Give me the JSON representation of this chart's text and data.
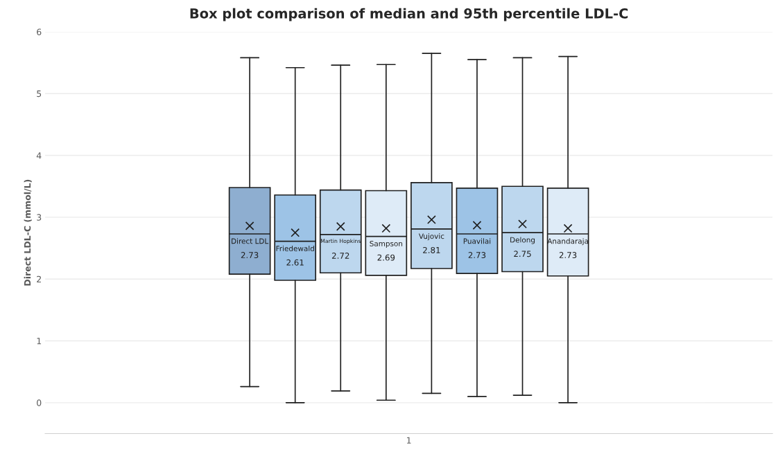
{
  "chart_data": {
    "type": "box",
    "title": "Box plot comparison of median and 95th percentile LDL-C",
    "ylabel": "Direct LDL-C (mmol/L)",
    "categories": [
      "1"
    ],
    "ylim": [
      -0.5,
      6
    ],
    "yticks": [
      0,
      1,
      2,
      3,
      4,
      5,
      6
    ],
    "grid": "y",
    "legend": false,
    "series": [
      {
        "name": "Direct LDL",
        "color": "#8eaed0",
        "boxes": [
          {
            "low": 0.26,
            "q1": 2.08,
            "median": 2.73,
            "q3": 3.48,
            "high": 5.58,
            "mean": 2.86
          }
        ],
        "value_labels": [
          "2.73"
        ]
      },
      {
        "name": "Friedewald",
        "color": "#9dc3e6",
        "boxes": [
          {
            "low": 0.0,
            "q1": 1.98,
            "median": 2.61,
            "q3": 3.36,
            "high": 5.42,
            "mean": 2.75
          }
        ],
        "value_labels": [
          "2.61"
        ]
      },
      {
        "name": "Martin Hopkins",
        "color": "#bdd7ee",
        "boxes": [
          {
            "low": 0.19,
            "q1": 2.1,
            "median": 2.72,
            "q3": 3.44,
            "high": 5.46,
            "mean": 2.85
          }
        ],
        "value_labels": [
          "2.72"
        ]
      },
      {
        "name": "Sampson",
        "color": "#deebf7",
        "boxes": [
          {
            "low": 0.04,
            "q1": 2.06,
            "median": 2.69,
            "q3": 3.43,
            "high": 5.47,
            "mean": 2.82
          }
        ],
        "value_labels": [
          "2.69"
        ]
      },
      {
        "name": "Vujovic",
        "color": "#bdd7ee",
        "boxes": [
          {
            "low": 0.15,
            "q1": 2.17,
            "median": 2.81,
            "q3": 3.56,
            "high": 5.65,
            "mean": 2.96
          }
        ],
        "value_labels": [
          "2.81"
        ]
      },
      {
        "name": "Puavilai",
        "color": "#9dc3e6",
        "boxes": [
          {
            "low": 0.1,
            "q1": 2.09,
            "median": 2.73,
            "q3": 3.47,
            "high": 5.55,
            "mean": 2.87
          }
        ],
        "value_labels": [
          "2.73"
        ]
      },
      {
        "name": "Delong",
        "color": "#bdd7ee",
        "boxes": [
          {
            "low": 0.12,
            "q1": 2.12,
            "median": 2.75,
            "q3": 3.5,
            "high": 5.58,
            "mean": 2.89
          }
        ],
        "value_labels": [
          "2.75"
        ]
      },
      {
        "name": "Anandaraja",
        "color": "#deebf7",
        "boxes": [
          {
            "low": 0.0,
            "q1": 2.05,
            "median": 2.73,
            "q3": 3.47,
            "high": 5.6,
            "mean": 2.82
          }
        ],
        "value_labels": [
          "2.73"
        ]
      }
    ]
  }
}
